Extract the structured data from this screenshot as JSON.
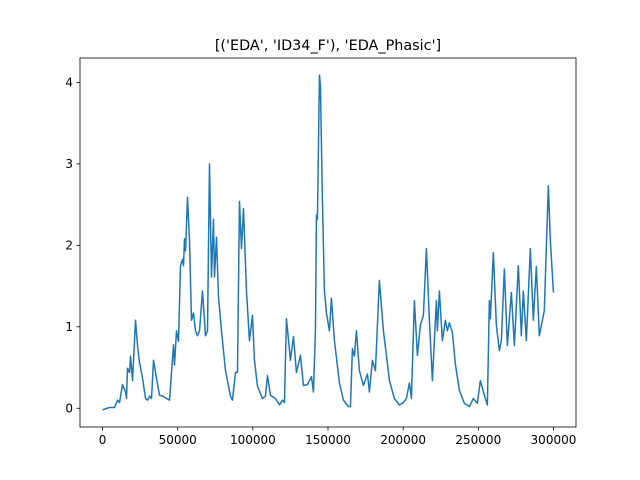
{
  "chart_data": {
    "type": "line",
    "title": "[('EDA', 'ID34_F'), 'EDA_Phasic']",
    "x": [
      0,
      4656,
      7980,
      9975,
      11305,
      13300,
      15295,
      15960,
      16625,
      17955,
      18620,
      19950,
      21945,
      23275,
      24605,
      26600,
      28595,
      29925,
      31255,
      32585,
      33915,
      35910,
      37905,
      39900,
      44555,
      47215,
      47880,
      49210,
      50540,
      51870,
      53200,
      53865,
      54530,
      55195,
      56525,
      57855,
      59185,
      60515,
      61845,
      63175,
      64505,
      66500,
      68495,
      69825,
      71155,
      72485,
      73815,
      74480,
      75810,
      77140,
      79135,
      81795,
      85120,
      86450,
      88445,
      89775,
      91105,
      92435,
      93765,
      95760,
      97755,
      99750,
      101080,
      103075,
      106400,
      108395,
      109725,
      111720,
      115045,
      117705,
      119700,
      121030,
      122360,
      125020,
      127015,
      129010,
      131670,
      133665,
      136325,
      138985,
      140315,
      141645,
      142310,
      142975,
      144305,
      144970,
      146300,
      147630,
      148960,
      150955,
      152285,
      154280,
      157605,
      160265,
      163590,
      164920,
      166250,
      167580,
      168910,
      170905,
      173565,
      176225,
      177555,
      179550,
      181545,
      184205,
      186865,
      188860,
      190855,
      194180,
      197505,
      200165,
      202160,
      204155,
      205485,
      207480,
      209475,
      211470,
      213465,
      215460,
      217455,
      219450,
      222110,
      222775,
      224105,
      226100,
      228095,
      229425,
      230755,
      232750,
      234745,
      237405,
      240730,
      244055,
      246715,
      249375,
      251370,
      254030,
      256025,
      257355,
      258020,
      260015,
      262010,
      264005,
      265335,
      267330,
      269325,
      271985,
      273980,
      276640,
      278635,
      279965,
      281960,
      284620,
      286615,
      288610,
      290605,
      293930,
      296590,
      297920,
      300000
    ],
    "series": [
      {
        "color": "#1f77b4",
        "values": [
          -0.02,
          0.01,
          0.01,
          0.1,
          0.07,
          0.29,
          0.2,
          0.12,
          0.49,
          0.44,
          0.64,
          0.34,
          1.08,
          0.77,
          0.56,
          0.37,
          0.12,
          0.1,
          0.15,
          0.12,
          0.59,
          0.37,
          0.16,
          0.15,
          0.1,
          0.78,
          0.53,
          0.95,
          0.82,
          1.75,
          1.83,
          1.75,
          2.08,
          1.93,
          2.59,
          2.06,
          1.08,
          1.17,
          0.95,
          0.89,
          0.95,
          1.44,
          0.89,
          0.95,
          3.0,
          1.61,
          2.32,
          1.61,
          2.1,
          1.37,
          0.95,
          0.46,
          0.15,
          0.1,
          0.44,
          0.44,
          2.54,
          1.96,
          2.45,
          1.44,
          0.83,
          1.14,
          0.59,
          0.27,
          0.12,
          0.15,
          0.4,
          0.16,
          0.12,
          0.04,
          0.1,
          0.07,
          1.1,
          0.59,
          0.88,
          0.44,
          0.65,
          0.28,
          0.29,
          0.39,
          0.2,
          0.95,
          2.37,
          2.32,
          4.09,
          3.96,
          2.54,
          1.44,
          1.17,
          0.95,
          1.35,
          0.83,
          0.31,
          0.1,
          0.02,
          0.02,
          0.73,
          0.64,
          0.95,
          0.46,
          0.28,
          0.42,
          0.2,
          0.59,
          0.46,
          1.57,
          0.95,
          0.65,
          0.34,
          0.12,
          0.04,
          0.07,
          0.12,
          0.31,
          0.12,
          1.32,
          0.65,
          1.02,
          1.14,
          1.96,
          1.08,
          0.34,
          1.32,
          0.95,
          1.44,
          0.83,
          1.08,
          0.95,
          1.05,
          0.93,
          0.54,
          0.22,
          0.06,
          0.02,
          0.12,
          0.06,
          0.34,
          0.16,
          0.04,
          1.32,
          1.1,
          1.91,
          1.02,
          0.71,
          0.83,
          1.71,
          0.77,
          1.42,
          0.77,
          1.75,
          0.89,
          1.44,
          0.83,
          1.96,
          1.08,
          1.74,
          0.89,
          1.2,
          2.73,
          2.06,
          1.42
        ]
      }
    ],
    "xlim": [
      -15000,
      315000
    ],
    "ylim": [
      -0.23,
      4.3
    ],
    "xticks": [
      0,
      50000,
      100000,
      150000,
      200000,
      250000,
      300000
    ],
    "yticks": [
      0,
      1,
      2,
      3,
      4
    ],
    "grid": false
  }
}
